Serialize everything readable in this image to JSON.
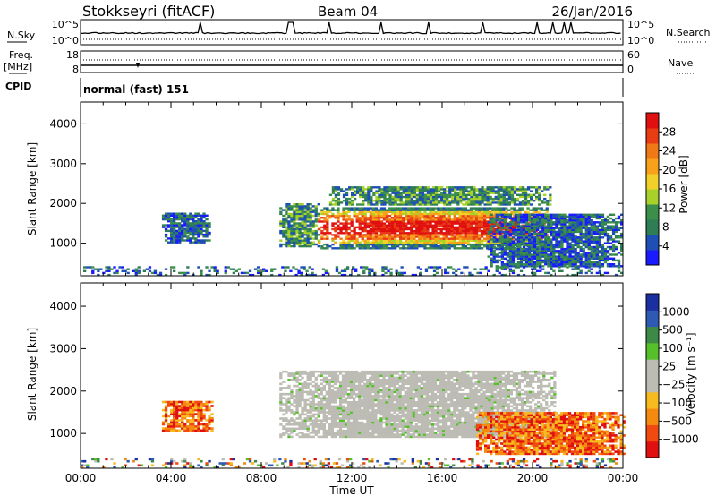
{
  "header": {
    "station": "Stokkseyri (fitACF)",
    "beam": "Beam 04",
    "date": "26/Jan/2016"
  },
  "top_panels": {
    "nsky_label": "N.Sky",
    "nsky_ticks": [
      "10^5",
      "10^0"
    ],
    "nsearch_label": "N.Search",
    "nsearch_ticks": [
      "10^5",
      "10^0"
    ],
    "freq_label_1": "Freq.",
    "freq_label_2": "[MHz]",
    "freq_ticks": [
      "18",
      "8"
    ],
    "nave_label": "Nave",
    "nave_ticks": [
      "60",
      "0"
    ],
    "cpid_label": "CPID",
    "cpid_text": "normal (fast) 151"
  },
  "colors": {
    "power_scale": [
      "#1a1aff",
      "#1e4fb4",
      "#2e7d55",
      "#3b8f4a",
      "#a8d22a",
      "#f2d02a",
      "#f7a21a",
      "#f07816",
      "#e83c14",
      "#e01010"
    ],
    "velocity_scale": [
      "#e01010",
      "#f04a10",
      "#f58a10",
      "#f7bb20",
      "#bcbcb4",
      "#bcbcb4",
      "#56c02a",
      "#3c8a46",
      "#2e5ab4",
      "#1a2fa0"
    ]
  },
  "chart_data": [
    {
      "type": "heatmap",
      "panel": "power",
      "xlabel": "Time UT",
      "ylabel": "Slant Range [km]",
      "xlim": [
        0,
        24
      ],
      "ylim": [
        180,
        4550
      ],
      "x_ticks": [
        "00:00",
        "04:00",
        "08:00",
        "12:00",
        "16:00",
        "20:00",
        "00:00"
      ],
      "y_ticks": [
        "1000",
        "2000",
        "3000",
        "4000"
      ],
      "colorbar_label": "Power [dB]",
      "colorbar_ticks": [
        "28",
        "24",
        "20",
        "16",
        "12",
        "8",
        "4"
      ],
      "regions": [
        {
          "t0": 3.6,
          "t1": 5.7,
          "r0": 1000,
          "r1": 1750,
          "level": "low"
        },
        {
          "t0": 8.8,
          "t1": 10.5,
          "r0": 900,
          "r1": 2000,
          "level": "mid"
        },
        {
          "t0": 10.5,
          "t1": 20.7,
          "r0": 850,
          "r1": 1900,
          "level": "high"
        },
        {
          "t0": 11.0,
          "t1": 20.8,
          "r0": 1950,
          "r1": 2400,
          "level": "mid"
        },
        {
          "t0": 18.0,
          "t1": 24.0,
          "r0": 400,
          "r1": 1700,
          "level": "low"
        },
        {
          "t0": 0.0,
          "t1": 24.0,
          "r0": 180,
          "r1": 380,
          "level": "low"
        }
      ]
    },
    {
      "type": "heatmap",
      "panel": "velocity",
      "xlabel": "Time UT",
      "ylabel": "Slant Range [km]",
      "xlim": [
        0,
        24
      ],
      "ylim": [
        180,
        4550
      ],
      "x_ticks": [
        "00:00",
        "04:00",
        "08:00",
        "12:00",
        "16:00",
        "20:00",
        "00:00"
      ],
      "y_ticks": [
        "1000",
        "2000",
        "3000",
        "4000"
      ],
      "colorbar_label": "Velocity [m s⁻¹]",
      "colorbar_ticks": [
        "1000",
        "500",
        "100",
        "25",
        "−25",
        "−100",
        "−500",
        "−1000"
      ],
      "regions": [
        {
          "t0": 3.6,
          "t1": 5.8,
          "r0": 1050,
          "r1": 1750,
          "level": "neg"
        },
        {
          "t0": 8.8,
          "t1": 21.0,
          "r0": 900,
          "r1": 2450,
          "level": "zero"
        },
        {
          "t0": 17.5,
          "t1": 24.0,
          "r0": 500,
          "r1": 1500,
          "level": "neg"
        },
        {
          "t0": 0.0,
          "t1": 24.0,
          "r0": 180,
          "r1": 380,
          "level": "mixed"
        }
      ]
    }
  ],
  "nsky_spikes_ut": [
    5.3,
    9.2,
    9.35,
    11.0,
    13.3,
    15.4,
    17.8,
    20.2,
    20.9,
    21.4,
    21.7
  ]
}
